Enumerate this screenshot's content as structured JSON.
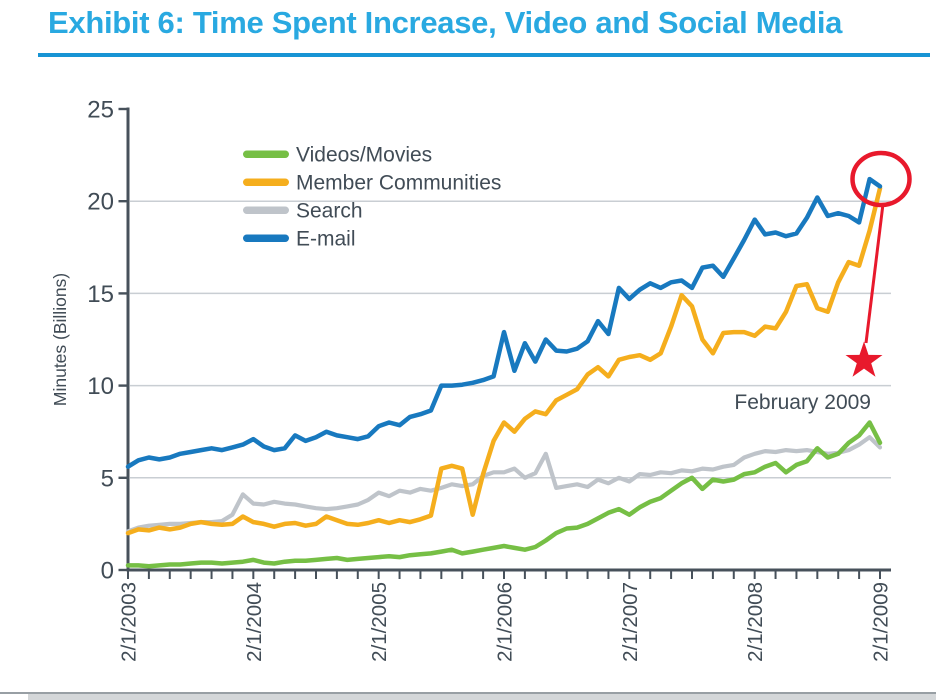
{
  "page": {
    "title": "Exhibit 6: Time Spent Increase, Video and Social Media",
    "title_color": "#29A9E1",
    "title_rule_color": "#1794D4"
  },
  "colors": {
    "axis": "#47515B",
    "text": "#414C56",
    "gridline": "#C9CED3",
    "annotation_red": "#E8192C",
    "bottom_divider": "#989FA4",
    "bottom_track": "#D4D7D9"
  },
  "chart_data": {
    "type": "line",
    "title": "Exhibit 6: Time Spent Increase, Video and Social Media",
    "xlabel": "",
    "ylabel": "Minutes (Billions)",
    "ylim": [
      0,
      25
    ],
    "yticks": [
      0,
      5,
      10,
      15,
      20,
      25
    ],
    "gridlines_at": [
      5,
      10,
      15,
      20
    ],
    "grid": "horizontal-only",
    "x_unit": "monthly",
    "x_months_total": 72,
    "x_tick_labels": [
      "2/1/2003",
      "2/1/2004",
      "2/1/2005",
      "2/1/2006",
      "2/1/2007",
      "2/1/2008",
      "2/1/2009"
    ],
    "x_major_tick_every_months": 12,
    "x_minor_tick_every_months": 2,
    "legend_position": "upper-left-inside",
    "draw_order": [
      2,
      1,
      0,
      3
    ],
    "series": [
      {
        "name": "Videos/Movies",
        "color": "#76BF45",
        "width": 4.5,
        "values": [
          0.25,
          0.25,
          0.2,
          0.25,
          0.3,
          0.3,
          0.35,
          0.4,
          0.4,
          0.35,
          0.4,
          0.45,
          0.55,
          0.4,
          0.35,
          0.45,
          0.5,
          0.5,
          0.55,
          0.6,
          0.65,
          0.55,
          0.6,
          0.65,
          0.7,
          0.75,
          0.7,
          0.8,
          0.85,
          0.9,
          1.0,
          1.1,
          0.9,
          1.0,
          1.1,
          1.2,
          1.3,
          1.2,
          1.1,
          1.25,
          1.6,
          2.0,
          2.25,
          2.3,
          2.5,
          2.8,
          3.1,
          3.3,
          3.0,
          3.4,
          3.7,
          3.9,
          4.3,
          4.7,
          5.0,
          4.4,
          4.9,
          4.8,
          4.9,
          5.2,
          5.3,
          5.6,
          5.8,
          5.3,
          5.7,
          5.9,
          6.6,
          6.1,
          6.3,
          6.9,
          7.3,
          8.0,
          6.9
        ]
      },
      {
        "name": "Member Communities",
        "color": "#F5AE1D",
        "width": 4.5,
        "values": [
          2.0,
          2.2,
          2.15,
          2.3,
          2.2,
          2.3,
          2.5,
          2.6,
          2.5,
          2.45,
          2.5,
          2.9,
          2.6,
          2.5,
          2.35,
          2.5,
          2.55,
          2.4,
          2.5,
          2.9,
          2.7,
          2.5,
          2.45,
          2.55,
          2.7,
          2.55,
          2.7,
          2.6,
          2.75,
          2.95,
          5.5,
          5.65,
          5.5,
          3.0,
          5.2,
          7.0,
          8.0,
          7.5,
          8.2,
          8.6,
          8.45,
          9.2,
          9.5,
          9.8,
          10.6,
          11.0,
          10.5,
          11.4,
          11.55,
          11.65,
          11.4,
          11.75,
          13.2,
          14.9,
          14.3,
          12.5,
          11.75,
          12.85,
          12.9,
          12.9,
          12.7,
          13.2,
          13.1,
          14.0,
          15.4,
          15.5,
          14.2,
          14.0,
          15.6,
          16.7,
          16.5,
          18.4,
          20.7
        ]
      },
      {
        "name": "Search",
        "color": "#BFC4CA",
        "width": 4.2,
        "values": [
          2.1,
          2.3,
          2.4,
          2.45,
          2.5,
          2.5,
          2.55,
          2.6,
          2.6,
          2.65,
          3.0,
          4.1,
          3.6,
          3.55,
          3.7,
          3.6,
          3.55,
          3.45,
          3.35,
          3.3,
          3.35,
          3.45,
          3.55,
          3.8,
          4.2,
          4.0,
          4.3,
          4.2,
          4.4,
          4.3,
          4.45,
          4.65,
          4.55,
          4.65,
          5.1,
          5.3,
          5.3,
          5.5,
          5.0,
          5.25,
          6.3,
          4.45,
          4.55,
          4.65,
          4.5,
          4.9,
          4.7,
          5.0,
          4.8,
          5.2,
          5.15,
          5.3,
          5.25,
          5.4,
          5.35,
          5.5,
          5.45,
          5.6,
          5.7,
          6.1,
          6.3,
          6.45,
          6.4,
          6.5,
          6.45,
          6.5,
          6.4,
          6.3,
          6.35,
          6.5,
          6.8,
          7.2,
          6.65
        ]
      },
      {
        "name": "E-mail",
        "color": "#1879BF",
        "width": 4.5,
        "values": [
          5.6,
          5.95,
          6.1,
          6.0,
          6.1,
          6.3,
          6.4,
          6.5,
          6.6,
          6.5,
          6.65,
          6.8,
          7.1,
          6.7,
          6.5,
          6.6,
          7.3,
          7.0,
          7.2,
          7.5,
          7.3,
          7.2,
          7.1,
          7.25,
          7.8,
          8.0,
          7.85,
          8.3,
          8.45,
          8.65,
          10.0,
          10.0,
          10.05,
          10.15,
          10.3,
          10.5,
          12.9,
          10.8,
          12.3,
          11.3,
          12.5,
          11.9,
          11.85,
          12.0,
          12.4,
          13.5,
          12.8,
          15.3,
          14.7,
          15.2,
          15.55,
          15.3,
          15.6,
          15.7,
          15.3,
          16.4,
          16.5,
          15.9,
          16.9,
          17.9,
          19.0,
          18.2,
          18.3,
          18.1,
          18.25,
          19.1,
          20.2,
          19.2,
          19.35,
          19.2,
          18.85,
          21.2,
          20.8
        ]
      }
    ],
    "annotation": {
      "label": "February 2009",
      "color": "#E8192C",
      "circle_around": "last data point, value ~21",
      "marker": "star"
    }
  }
}
